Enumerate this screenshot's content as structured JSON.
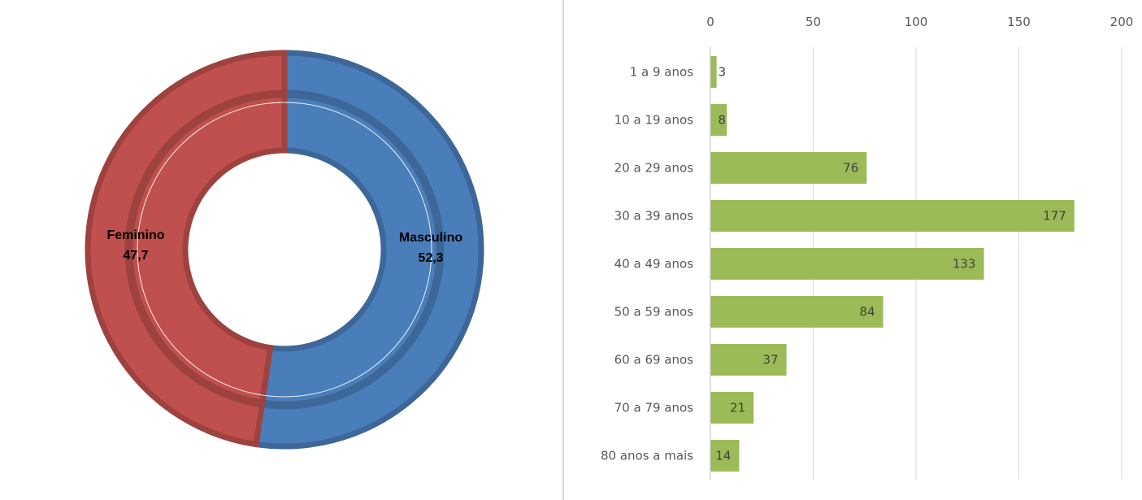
{
  "chart_data": [
    {
      "type": "pie",
      "variant": "donut",
      "title": "",
      "labels": [
        "Masculino",
        "Feminino"
      ],
      "values": [
        52.3,
        47.7
      ],
      "value_labels": [
        "52,3",
        "47,7"
      ],
      "colors": [
        "#4A7EBB",
        "#C0504D"
      ]
    },
    {
      "type": "bar",
      "orientation": "horizontal",
      "title": "",
      "categories": [
        "1 a 9 anos",
        "10 a 19 anos",
        "20 a 29 anos",
        "30 a 39 anos",
        "40 a 49 anos",
        "50 a 59 anos",
        "60 a 69 anos",
        "70 a 79 anos",
        "80 anos a mais"
      ],
      "values": [
        3,
        8,
        76,
        177,
        133,
        84,
        37,
        21,
        14
      ],
      "xlim": [
        0,
        200
      ],
      "ticks": [
        0,
        50,
        100,
        150,
        200
      ],
      "axis_position": "top",
      "grid": true,
      "bar_color": "#9BBB59"
    }
  ]
}
